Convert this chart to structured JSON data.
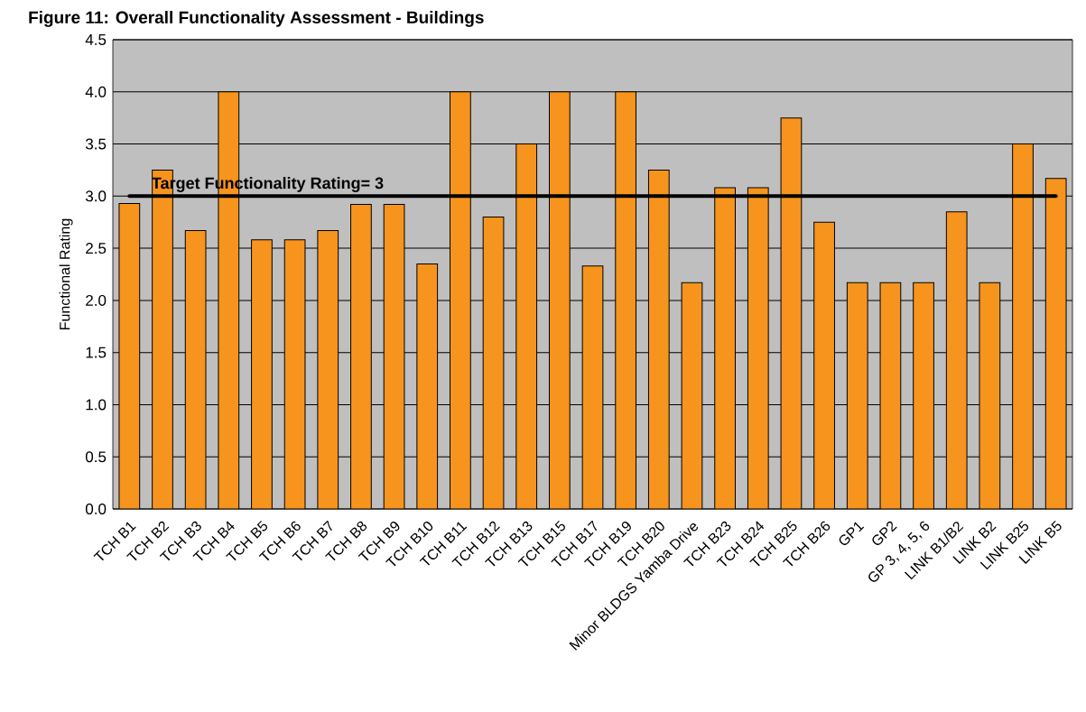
{
  "chart_data": {
    "type": "bar",
    "title": "Figure 11: Overall Functionality Assessment - Buildings",
    "ylabel": "Functional Rating",
    "categories": [
      "TCH B1",
      "TCH B2",
      "TCH B3",
      "TCH B4",
      "TCH B5",
      "TCH B6",
      "TCH B7",
      "TCH B8",
      "TCH B9",
      "TCH B10",
      "TCH B11",
      "TCH B12",
      "TCH B13",
      "TCH B15",
      "TCH B17",
      "TCH B19",
      "TCH B20",
      "Minor BLDGS Yamba Drive",
      "TCH B23",
      "TCH B24",
      "TCH B25",
      "TCH B26",
      "GP1",
      "GP2",
      "GP 3, 4, 5, 6",
      "LINK B1/B2",
      "LINK B2",
      "LINK B25",
      "LINK B5"
    ],
    "values": [
      2.93,
      3.25,
      2.67,
      4.0,
      2.58,
      2.58,
      2.67,
      2.92,
      2.92,
      2.35,
      4.0,
      2.8,
      3.5,
      4.0,
      2.33,
      4.0,
      3.25,
      2.17,
      3.08,
      3.08,
      3.75,
      2.75,
      2.17,
      2.17,
      2.17,
      2.85,
      2.17,
      3.5,
      3.17
    ],
    "color": "#f7941d",
    "ylim": [
      0,
      4.5
    ],
    "yticks": [
      {
        "value": 0,
        "label": "0.0"
      },
      {
        "value": 0.5,
        "label": "0.5"
      },
      {
        "value": 1,
        "label": "1.0"
      },
      {
        "value": 1.5,
        "label": "1.5"
      },
      {
        "value": 2,
        "label": "2.0"
      },
      {
        "value": 2.5,
        "label": "2.5"
      },
      {
        "value": 3,
        "label": "3.0"
      },
      {
        "value": 3.5,
        "label": "3.5"
      },
      {
        "value": 4,
        "label": "4.0"
      },
      {
        "value": 4.5,
        "label": "4.5"
      }
    ],
    "grid": "y",
    "ref_lines": [
      {
        "axis": "y",
        "value": 3,
        "label": "Target Functionality Rating= 3",
        "color": "#000000"
      }
    ]
  }
}
